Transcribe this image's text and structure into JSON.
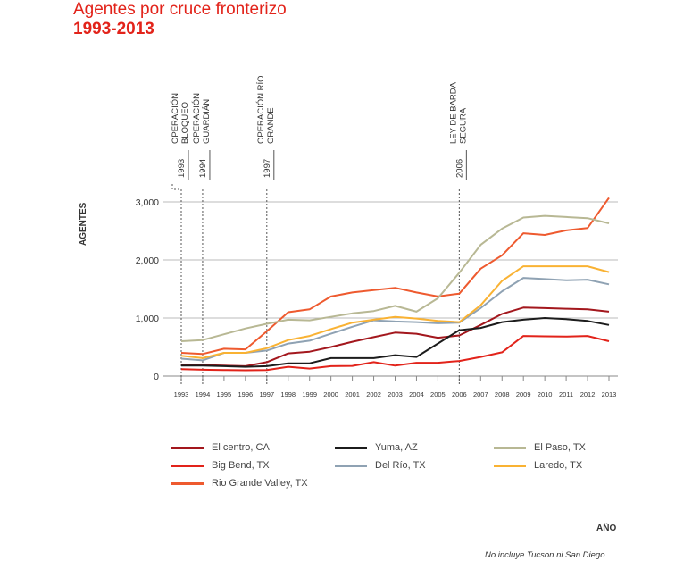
{
  "header": {
    "title": "Agentes por cruce fronterizo",
    "subtitle": "1993-2013"
  },
  "footnote": "No incluye Tucson ni San Diego",
  "chart_data": {
    "type": "line",
    "ylabel": "AGENTES",
    "xlabel": "AÑO",
    "ylim": [
      0,
      3100
    ],
    "yticks": [
      0,
      1000,
      2000,
      3000
    ],
    "ytick_labels": [
      "0",
      "1,000",
      "2,000",
      "3,000"
    ],
    "x": [
      1993,
      1994,
      1995,
      1996,
      1997,
      1998,
      1999,
      2000,
      2001,
      2002,
      2003,
      2004,
      2005,
      2006,
      2007,
      2008,
      2009,
      2010,
      2011,
      2012,
      2013
    ],
    "grid": "horizontal",
    "legend_position": "bottom",
    "events": [
      {
        "year": "1993",
        "label_lines": [
          "OPERACIÓN",
          "BLOQUEO"
        ]
      },
      {
        "year": "1994",
        "label_lines": [
          "OPERACIÓN",
          "GUARDIÁN"
        ]
      },
      {
        "year": "1997",
        "label_lines": [
          "OPERACIÓN RÍO",
          "GRANDE"
        ]
      },
      {
        "year": "2006",
        "label_lines": [
          "LEY DE BARDA",
          "SEGURA"
        ]
      }
    ],
    "series": [
      {
        "name": "El centro, CA",
        "color": "#a3171d",
        "values": [
          200,
          190,
          180,
          170,
          240,
          390,
          420,
          500,
          590,
          670,
          750,
          730,
          660,
          700,
          880,
          1070,
          1180,
          1170,
          1160,
          1150,
          1110
        ]
      },
      {
        "name": "Big Bend, TX",
        "color": "#e2231a",
        "values": [
          120,
          110,
          105,
          100,
          105,
          160,
          130,
          170,
          175,
          240,
          180,
          230,
          230,
          260,
          330,
          410,
          690,
          685,
          680,
          690,
          600
        ]
      },
      {
        "name": "Rio Grande Valley, TX",
        "color": "#ee5a2f",
        "values": [
          400,
          380,
          470,
          460,
          770,
          1100,
          1150,
          1370,
          1440,
          1480,
          1520,
          1440,
          1370,
          1420,
          1850,
          2080,
          2460,
          2430,
          2510,
          2550,
          3070
        ]
      },
      {
        "name": "Yuma, AZ",
        "color": "#1c1c1c",
        "values": [
          180,
          180,
          170,
          160,
          170,
          220,
          220,
          310,
          310,
          310,
          360,
          330,
          560,
          790,
          830,
          930,
          970,
          1000,
          980,
          950,
          880
        ]
      },
      {
        "name": "Del Río, TX",
        "color": "#8fa2b3",
        "values": [
          300,
          270,
          400,
          400,
          440,
          560,
          610,
          730,
          850,
          960,
          940,
          930,
          910,
          920,
          1170,
          1460,
          1690,
          1670,
          1650,
          1660,
          1580
        ]
      },
      {
        "name": "El Paso, TX",
        "color": "#b8b894",
        "values": [
          600,
          620,
          720,
          820,
          900,
          970,
          960,
          1020,
          1080,
          1120,
          1210,
          1110,
          1340,
          1780,
          2260,
          2540,
          2730,
          2760,
          2740,
          2720,
          2630
        ]
      },
      {
        "name": "Laredo, TX",
        "color": "#f9b233",
        "values": [
          350,
          310,
          400,
          400,
          480,
          620,
          690,
          810,
          920,
          970,
          1020,
          990,
          950,
          930,
          1220,
          1640,
          1890,
          1890,
          1890,
          1890,
          1790
        ]
      }
    ]
  }
}
